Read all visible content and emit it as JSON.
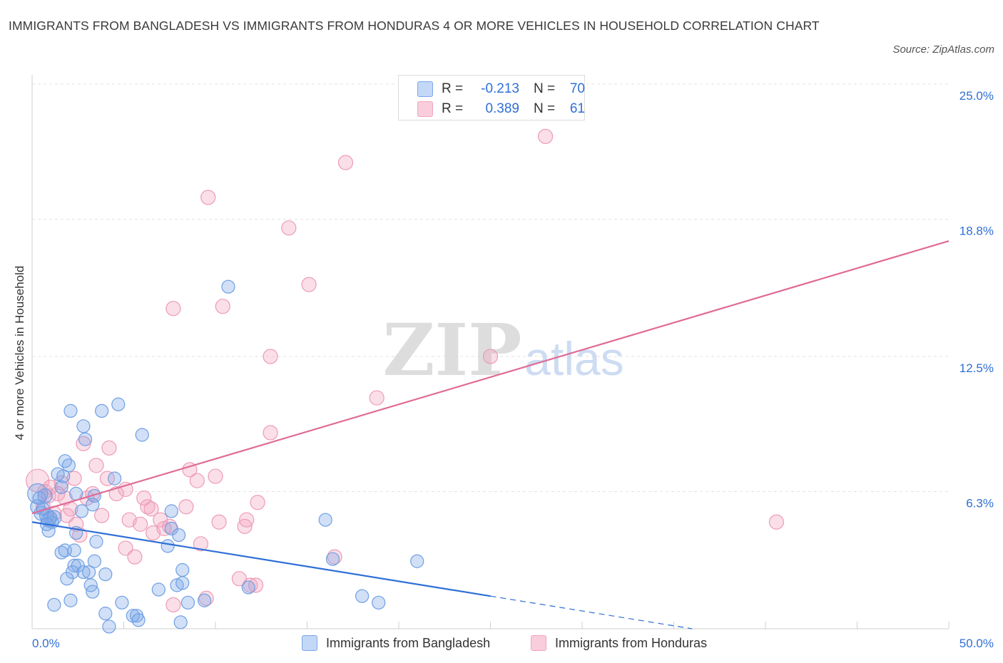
{
  "header": {
    "title": "IMMIGRANTS FROM BANGLADESH VS IMMIGRANTS FROM HONDURAS 4 OR MORE VEHICLES IN HOUSEHOLD CORRELATION CHART",
    "source": "Source: ZipAtlas.com"
  },
  "watermark": {
    "zip": "ZIP",
    "atlas": "atlas"
  },
  "legend": {
    "r_label": "R =",
    "n_label": "N =",
    "series": [
      {
        "r": "-0.213",
        "n": "70"
      },
      {
        "r": "0.389",
        "n": "61"
      }
    ]
  },
  "chart_data": {
    "type": "scatter",
    "title": "IMMIGRANTS FROM BANGLADESH VS IMMIGRANTS FROM HONDURAS 4 OR MORE VEHICLES IN HOUSEHOLD CORRELATION CHART",
    "ylabel": "4 or more Vehicles in Household",
    "xlabel": "",
    "xlim": [
      0,
      50
    ],
    "ylim": [
      0,
      25
    ],
    "x_tick_labels": [
      "0.0%",
      "50.0%"
    ],
    "y_ticks": [
      6.3,
      12.5,
      18.8,
      25.0
    ],
    "y_tick_labels": [
      "6.3%",
      "12.5%",
      "18.8%",
      "25.0%"
    ],
    "grid": true,
    "legend_position": "top-center",
    "colors": {
      "bangladesh": "#7aa7e8",
      "bangladesh_line": "#2f6fd6",
      "honduras": "#f2a3bd",
      "honduras_line": "#e06a96"
    },
    "series": [
      {
        "name": "Immigrants from Bangladesh",
        "r": -0.213,
        "n": 70,
        "trend": {
          "x0": 0,
          "y0": 4.9,
          "x1": 25,
          "y1": 1.5,
          "dashed_to_x": 36,
          "dashed_to_y": 0
        },
        "points": [
          [
            0.3,
            6.2,
            14
          ],
          [
            0.3,
            5.6,
            10
          ],
          [
            0.5,
            5.3,
            10
          ],
          [
            0.7,
            6.1,
            10
          ],
          [
            0.8,
            5.2,
            10
          ],
          [
            0.9,
            5.0,
            10
          ],
          [
            1.1,
            4.9,
            9
          ],
          [
            1.2,
            5.1,
            10
          ],
          [
            0.9,
            4.5,
            9
          ],
          [
            1.6,
            6.5,
            9
          ],
          [
            1.7,
            7.0,
            9
          ],
          [
            1.8,
            7.7,
            9
          ],
          [
            2.0,
            7.5,
            9
          ],
          [
            1.4,
            7.1,
            9
          ],
          [
            2.1,
            10.0,
            9
          ],
          [
            2.8,
            9.3,
            9
          ],
          [
            2.9,
            8.7,
            9
          ],
          [
            3.8,
            10.0,
            9
          ],
          [
            4.7,
            10.3,
            9
          ],
          [
            6.0,
            8.9,
            9
          ],
          [
            4.5,
            6.9,
            9
          ],
          [
            3.3,
            5.7,
            9
          ],
          [
            3.4,
            6.1,
            9
          ],
          [
            2.7,
            5.4,
            9
          ],
          [
            2.4,
            4.4,
            9
          ],
          [
            3.5,
            4.0,
            9
          ],
          [
            1.6,
            3.5,
            9
          ],
          [
            1.8,
            3.6,
            9
          ],
          [
            2.3,
            3.6,
            9
          ],
          [
            3.4,
            3.1,
            9
          ],
          [
            2.3,
            2.9,
            9
          ],
          [
            2.5,
            2.9,
            9
          ],
          [
            2.2,
            2.6,
            9
          ],
          [
            2.8,
            2.6,
            9
          ],
          [
            3.1,
            2.6,
            9
          ],
          [
            4.0,
            2.5,
            9
          ],
          [
            1.9,
            2.3,
            9
          ],
          [
            3.2,
            2.0,
            9
          ],
          [
            3.3,
            1.7,
            9
          ],
          [
            2.1,
            1.3,
            9
          ],
          [
            1.2,
            1.1,
            9
          ],
          [
            4.0,
            0.7,
            9
          ],
          [
            4.2,
            0.1,
            9
          ],
          [
            4.9,
            1.2,
            9
          ],
          [
            5.5,
            0.6,
            9
          ],
          [
            5.7,
            0.6,
            9
          ],
          [
            5.8,
            0.4,
            9
          ],
          [
            6.9,
            1.8,
            9
          ],
          [
            7.6,
            5.4,
            9
          ],
          [
            7.4,
            3.8,
            9
          ],
          [
            8.0,
            4.3,
            9
          ],
          [
            7.6,
            4.6,
            9
          ],
          [
            7.9,
            2.0,
            9
          ],
          [
            8.2,
            2.7,
            9
          ],
          [
            8.2,
            2.1,
            9
          ],
          [
            8.1,
            0.3,
            9
          ],
          [
            8.5,
            1.2,
            9
          ],
          [
            9.4,
            1.3,
            9
          ],
          [
            11.8,
            1.9,
            9
          ],
          [
            10.7,
            15.7,
            9
          ],
          [
            16.0,
            5.0,
            9
          ],
          [
            16.4,
            3.2,
            9
          ],
          [
            18.0,
            1.5,
            9
          ],
          [
            18.9,
            1.2,
            9
          ],
          [
            21.0,
            3.1,
            9
          ],
          [
            0.6,
            5.5,
            9
          ],
          [
            1.0,
            5.1,
            9
          ],
          [
            0.4,
            6.0,
            9
          ],
          [
            2.4,
            6.2,
            9
          ],
          [
            0.8,
            4.8,
            9
          ]
        ]
      },
      {
        "name": "Immigrants from Honduras",
        "r": 0.389,
        "n": 61,
        "trend": {
          "x0": 0,
          "y0": 5.3,
          "x1": 50,
          "y1": 17.8
        },
        "points": [
          [
            0.3,
            6.8,
            16
          ],
          [
            0.6,
            5.6,
            10
          ],
          [
            0.7,
            6.3,
            10
          ],
          [
            0.9,
            6.1,
            10
          ],
          [
            1.0,
            6.5,
            10
          ],
          [
            1.2,
            5.3,
            10
          ],
          [
            1.4,
            6.2,
            10
          ],
          [
            1.6,
            6.7,
            10
          ],
          [
            1.8,
            6.0,
            10
          ],
          [
            1.9,
            5.2,
            10
          ],
          [
            2.1,
            5.5,
            10
          ],
          [
            2.4,
            4.8,
            10
          ],
          [
            2.3,
            6.9,
            10
          ],
          [
            2.8,
            8.5,
            10
          ],
          [
            3.0,
            6.0,
            10
          ],
          [
            3.3,
            6.2,
            10
          ],
          [
            3.5,
            7.5,
            10
          ],
          [
            3.8,
            5.2,
            10
          ],
          [
            4.1,
            6.9,
            10
          ],
          [
            4.2,
            8.3,
            10
          ],
          [
            4.6,
            6.2,
            10
          ],
          [
            5.1,
            6.4,
            10
          ],
          [
            5.1,
            3.7,
            10
          ],
          [
            5.3,
            5.0,
            10
          ],
          [
            5.6,
            3.3,
            10
          ],
          [
            5.9,
            4.8,
            10
          ],
          [
            6.1,
            6.0,
            10
          ],
          [
            6.3,
            5.6,
            10
          ],
          [
            6.5,
            5.5,
            10
          ],
          [
            6.6,
            4.4,
            10
          ],
          [
            7.0,
            5.0,
            10
          ],
          [
            7.2,
            4.6,
            10
          ],
          [
            7.5,
            4.7,
            10
          ],
          [
            7.7,
            1.1,
            10
          ],
          [
            7.7,
            14.7,
            10
          ],
          [
            8.4,
            5.6,
            10
          ],
          [
            8.6,
            7.3,
            10
          ],
          [
            9.0,
            6.8,
            10
          ],
          [
            9.2,
            3.9,
            10
          ],
          [
            9.5,
            1.4,
            10
          ],
          [
            9.6,
            19.8,
            10
          ],
          [
            10.0,
            7.0,
            10
          ],
          [
            10.2,
            4.9,
            10
          ],
          [
            10.4,
            14.8,
            10
          ],
          [
            11.3,
            2.3,
            10
          ],
          [
            11.6,
            4.7,
            10
          ],
          [
            11.7,
            5.0,
            10
          ],
          [
            11.9,
            2.0,
            10
          ],
          [
            12.2,
            2.0,
            10
          ],
          [
            12.3,
            5.8,
            10
          ],
          [
            13.0,
            9.0,
            10
          ],
          [
            13.0,
            12.5,
            10
          ],
          [
            14.0,
            18.4,
            10
          ],
          [
            15.1,
            15.8,
            10
          ],
          [
            16.5,
            3.3,
            10
          ],
          [
            17.1,
            21.4,
            10
          ],
          [
            18.8,
            10.6,
            10
          ],
          [
            25.0,
            12.5,
            10
          ],
          [
            28.0,
            22.6,
            10
          ],
          [
            40.6,
            4.9,
            10
          ],
          [
            2.6,
            4.3,
            10
          ]
        ]
      }
    ]
  },
  "bottom_legend": [
    {
      "label": "Immigrants from Bangladesh"
    },
    {
      "label": "Immigrants from Honduras"
    }
  ]
}
